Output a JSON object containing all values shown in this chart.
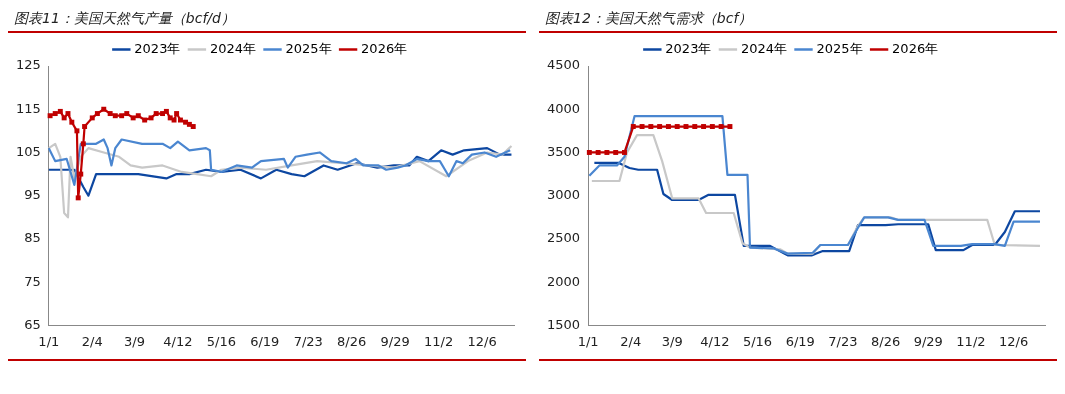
{
  "chart_data": [
    {
      "type": "line",
      "title": "图表11：美国天然气产量（bcf/d）",
      "legend": "top",
      "xlim": [
        "--01-01",
        "--12-31"
      ],
      "xticks": [
        {
          "value": "--01-01",
          "label": "1/1"
        },
        {
          "value": "--02-04",
          "label": "2/4"
        },
        {
          "value": "--03-09",
          "label": "3/9"
        },
        {
          "value": "--04-12",
          "label": "4/12"
        },
        {
          "value": "--05-16",
          "label": "5/16"
        },
        {
          "value": "--06-19",
          "label": "6/19"
        },
        {
          "value": "--07-23",
          "label": "7/23"
        },
        {
          "value": "--08-26",
          "label": "8/26"
        },
        {
          "value": "--09-29",
          "label": "9/29"
        },
        {
          "value": "--11-02",
          "label": "11/2"
        },
        {
          "value": "--12-06",
          "label": "12/6"
        }
      ],
      "ylim": [
        65,
        125
      ],
      "yticks": [
        65,
        75,
        85,
        95,
        105,
        115,
        125
      ],
      "series": [
        {
          "name": "2023年",
          "color": "#0d47a1",
          "x": [
            "--01-01",
            "--01-11",
            "--01-21",
            "--01-28",
            "--02-01",
            "--02-07",
            "--02-15",
            "--02-25",
            "--03-12",
            "--04-03",
            "--04-11",
            "--04-21",
            "--05-04",
            "--05-16",
            "--05-31",
            "--06-16",
            "--06-28",
            "--07-10",
            "--07-20",
            "--08-04",
            "--08-15",
            "--08-30",
            "--09-15",
            "--09-28",
            "--10-10",
            "--10-16",
            "--10-25",
            "--11-04",
            "--11-13",
            "--11-22",
            "--12-10",
            "--12-20",
            "--12-29"
          ],
          "values": [
            101,
            101,
            101,
            97,
            95,
            100,
            100,
            100,
            100,
            99,
            100,
            100,
            101,
            100.5,
            101,
            99,
            101,
            100,
            99.5,
            102,
            101,
            102.5,
            101.5,
            102,
            102,
            104,
            103,
            105.5,
            104.5,
            105.5,
            106,
            104.5,
            104.5
          ]
        },
        {
          "name": "2024年",
          "color": "#c8c8c8",
          "x": [
            "--01-01",
            "--01-06",
            "--01-10",
            "--01-13",
            "--01-16",
            "--01-18",
            "--01-21",
            "--01-26",
            "--02-01",
            "--02-13",
            "--02-25",
            "--03-06",
            "--03-15",
            "--03-31",
            "--04-15",
            "--04-27",
            "--05-08",
            "--05-16",
            "--05-31",
            "--06-20",
            "--07-10",
            "--07-30",
            "--08-19",
            "--09-08",
            "--09-28",
            "--10-18",
            "--11-08",
            "--11-25",
            "--12-10",
            "--12-22",
            "--12-29"
          ],
          "values": [
            106,
            107,
            104,
            91,
            90,
            104,
            99,
            104,
            106,
            105,
            104,
            102,
            101.5,
            102,
            100.5,
            100,
            99.5,
            101,
            101.5,
            101,
            102,
            103,
            102.5,
            102,
            101.5,
            103,
            99.5,
            103,
            105,
            104.5,
            106.5
          ]
        },
        {
          "name": "2025年",
          "color": "#4a86d0",
          "x": [
            "--01-01",
            "--01-06",
            "--01-15",
            "--01-21",
            "--01-26",
            "--02-07",
            "--02-13",
            "--02-16",
            "--02-19",
            "--02-22",
            "--02-27",
            "--03-15",
            "--03-31",
            "--04-06",
            "--04-12",
            "--04-21",
            "--05-04",
            "--05-07",
            "--05-08",
            "--05-16",
            "--05-28",
            "--06-09",
            "--06-16",
            "--07-04",
            "--07-07",
            "--07-13",
            "--07-22",
            "--08-01",
            "--08-10",
            "--08-22",
            "--08-29",
            "--09-04",
            "--09-16",
            "--09-22",
            "--10-01",
            "--10-07",
            "--10-16",
            "--10-25",
            "--11-03",
            "--11-07",
            "--11-10",
            "--11-16",
            "--11-21",
            "--11-28",
            "--12-08",
            "--12-17",
            "--12-28"
          ],
          "values": [
            106,
            103,
            103.5,
            97.5,
            107,
            107,
            108,
            106,
            102,
            106,
            108,
            107,
            107,
            106,
            107.5,
            105.5,
            106,
            105.5,
            101,
            100.5,
            102,
            101.5,
            103,
            103.5,
            101.5,
            104,
            104.5,
            105,
            103,
            102.5,
            103.5,
            102,
            102,
            101,
            101.5,
            102,
            103.5,
            103,
            103,
            101,
            99.5,
            103,
            102.5,
            104.5,
            105,
            104,
            105.5
          ]
        },
        {
          "name": "2026年",
          "color": "#c00000",
          "marker": "square",
          "x": [
            "--01-02",
            "--01-06",
            "--01-10",
            "--01-13",
            "--01-16",
            "--01-19",
            "--01-23",
            "--01-24",
            "--01-26",
            "--01-28",
            "--01-29",
            "--02-04",
            "--02-08",
            "--02-13",
            "--02-18",
            "--02-22",
            "--02-27",
            "--03-03",
            "--03-08",
            "--03-12",
            "--03-17",
            "--03-22",
            "--03-26",
            "--03-31",
            "--04-03",
            "--04-06",
            "--04-09",
            "--04-11",
            "--04-14",
            "--04-18",
            "--04-21",
            "--04-24"
          ],
          "values": [
            113.5,
            114,
            114.5,
            113,
            114,
            112,
            110,
            94.5,
            100,
            107,
            111,
            113,
            114,
            115,
            114,
            113.5,
            113.5,
            114,
            113,
            113.5,
            112.5,
            113,
            114,
            114,
            114.5,
            113,
            112.5,
            114,
            112.5,
            112,
            111.5,
            111
          ]
        }
      ]
    },
    {
      "type": "line",
      "title": "图表12：美国天然气需求（bcf）",
      "legend": "top",
      "xlim": [
        "--01-01",
        "--12-31"
      ],
      "xticks": [
        {
          "value": "--01-01",
          "label": "1/1"
        },
        {
          "value": "--02-04",
          "label": "2/4"
        },
        {
          "value": "--03-09",
          "label": "3/9"
        },
        {
          "value": "--04-12",
          "label": "4/12"
        },
        {
          "value": "--05-16",
          "label": "5/16"
        },
        {
          "value": "--06-19",
          "label": "6/19"
        },
        {
          "value": "--07-23",
          "label": "7/23"
        },
        {
          "value": "--08-26",
          "label": "8/26"
        },
        {
          "value": "--09-29",
          "label": "9/29"
        },
        {
          "value": "--11-02",
          "label": "11/2"
        },
        {
          "value": "--12-06",
          "label": "12/6"
        }
      ],
      "ylim": [
        1500,
        4500
      ],
      "yticks": [
        1500,
        2000,
        2500,
        3000,
        3500,
        4000,
        4500
      ],
      "series": [
        {
          "name": "2023年",
          "color": "#0d47a1",
          "x": [
            "--01-06",
            "--01-25",
            "--02-03",
            "--02-10",
            "--02-25",
            "--03-02",
            "--03-09",
            "--03-30",
            "--04-07",
            "--04-28",
            "--05-05",
            "--05-26",
            "--06-09",
            "--06-28",
            "--07-07",
            "--07-28",
            "--08-04",
            "--08-26",
            "--09-05",
            "--09-29",
            "--10-05",
            "--10-27",
            "--11-03",
            "--11-21",
            "--11-29",
            "--12-07",
            "--12-27"
          ],
          "values": [
            3380,
            3380,
            3320,
            3300,
            3300,
            3020,
            2950,
            2950,
            3010,
            3010,
            2420,
            2420,
            2310,
            2310,
            2360,
            2360,
            2660,
            2660,
            2670,
            2670,
            2370,
            2370,
            2430,
            2430,
            2580,
            2820,
            2820
          ]
        },
        {
          "name": "2024年",
          "color": "#c8c8c8",
          "x": [
            "--01-04",
            "--01-26",
            "--02-01",
            "--02-09",
            "--02-22",
            "--03-01",
            "--03-09",
            "--03-30",
            "--04-05",
            "--04-27",
            "--05-04",
            "--05-10",
            "--06-03",
            "--06-09",
            "--06-29",
            "--07-05",
            "--07-27",
            "--08-04",
            "--08-09",
            "--08-30",
            "--09-05",
            "--11-15",
            "--11-21",
            "--12-27"
          ],
          "values": [
            3170,
            3170,
            3500,
            3700,
            3700,
            3400,
            2970,
            2970,
            2800,
            2800,
            2450,
            2400,
            2380,
            2330,
            2330,
            2430,
            2430,
            2650,
            2750,
            2750,
            2720,
            2720,
            2430,
            2420
          ]
        },
        {
          "name": "2025年",
          "color": "#4a86d0",
          "x": [
            "--01-02",
            "--01-10",
            "--01-24",
            "--01-30",
            "--02-07",
            "--04-18",
            "--04-22",
            "--05-08",
            "--05-10",
            "--05-29",
            "--06-09",
            "--06-29",
            "--07-05",
            "--07-27",
            "--08-04",
            "--08-09",
            "--08-28",
            "--09-05",
            "--09-26",
            "--10-03",
            "--10-25",
            "--11-03",
            "--11-21",
            "--11-29",
            "--12-06",
            "--12-27"
          ],
          "values": [
            3230,
            3350,
            3350,
            3450,
            3920,
            3920,
            3240,
            3240,
            2400,
            2390,
            2330,
            2340,
            2430,
            2430,
            2630,
            2750,
            2750,
            2720,
            2720,
            2420,
            2420,
            2440,
            2440,
            2420,
            2700,
            2700
          ]
        },
        {
          "name": "2026年",
          "color": "#c00000",
          "marker": "square",
          "x": [
            "--01-02",
            "--01-09",
            "--01-16",
            "--01-23",
            "--01-30",
            "--02-06",
            "--02-13",
            "--02-20",
            "--02-27",
            "--03-06",
            "--03-13",
            "--03-20",
            "--03-27",
            "--04-03",
            "--04-10",
            "--04-17",
            "--04-24"
          ],
          "values": [
            3500,
            3500,
            3500,
            3500,
            3500,
            3800,
            3800,
            3800,
            3800,
            3800,
            3800,
            3800,
            3800,
            3800,
            3800,
            3800,
            3800
          ]
        }
      ]
    }
  ]
}
